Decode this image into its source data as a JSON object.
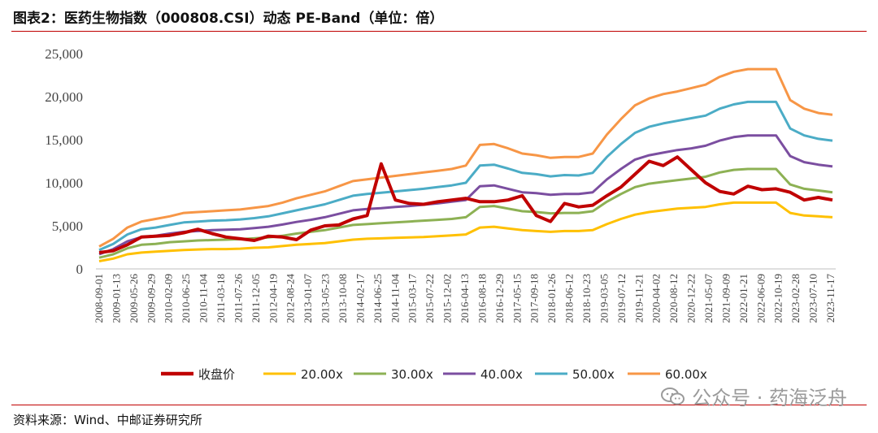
{
  "title": "图表2：医药生物指数（000808.CSI）动态 PE-Band（单位：倍）",
  "source": "资料来源：Wind、中邮证券研究所",
  "watermark": "公众号 · 药海泛舟",
  "chart_data": {
    "type": "line",
    "title": "图表2：医药生物指数（000808.CSI）动态 PE-Band（单位：倍）",
    "xlabel": "",
    "ylabel": "",
    "ylim": [
      0,
      25000
    ],
    "yticks": [
      0,
      5000,
      10000,
      15000,
      20000,
      25000
    ],
    "ytick_labels": [
      "0",
      "5,000",
      "10,000",
      "15,000",
      "20,000",
      "25,000"
    ],
    "x_tick_labels": [
      "2008-09-01",
      "2009-01-13",
      "2009-05-26",
      "2009-09-29",
      "2010-02-09",
      "2010-06-25",
      "2010-11-04",
      "2011-03-18",
      "2011-07-26",
      "2011-12-05",
      "2012-04-19",
      "2012-08-24",
      "2013-01-07",
      "2013-05-23",
      "2013-10-08",
      "2014-02-17",
      "2014-06-25",
      "2014-11-04",
      "2015-03-17",
      "2015-07-22",
      "2015-12-02",
      "2016-04-13",
      "2016-08-18",
      "2016-12-29",
      "2017-05-15",
      "2017-09-18",
      "2018-01-26",
      "2018-06-12",
      "2018-10-23",
      "2019-03-05",
      "2019-07-12",
      "2019-11-21",
      "2020-04-02",
      "2020-08-12",
      "2020-12-22",
      "2021-05-07",
      "2021-09-09",
      "2022-01-21",
      "2022-06-09",
      "2022-10-19",
      "2023-02-28",
      "2023-07-10",
      "2023-11-17"
    ],
    "legend_position": "bottom",
    "series": [
      {
        "name": "收盘价",
        "color": "#c00000",
        "values": [
          1900,
          2100,
          2800,
          3700,
          3800,
          3900,
          4200,
          4600,
          4100,
          3700,
          3500,
          3300,
          3800,
          3700,
          3400,
          4500,
          5000,
          5100,
          5800,
          6200,
          12200,
          8000,
          7600,
          7500,
          7800,
          8000,
          8200,
          7800,
          7800,
          8000,
          8500,
          6200,
          5500,
          7600,
          7200,
          7400,
          8500,
          9500,
          11000,
          12500,
          12000,
          13000,
          11500,
          10000,
          9000,
          8700,
          9600,
          9200,
          9300,
          8900,
          8000,
          8300,
          8000
        ]
      },
      {
        "name": "20.00x",
        "color": "#ffc000",
        "values": [
          900,
          1200,
          1700,
          1900,
          2000,
          2100,
          2200,
          2250,
          2300,
          2300,
          2350,
          2450,
          2500,
          2650,
          2800,
          2900,
          3000,
          3200,
          3400,
          3500,
          3550,
          3600,
          3650,
          3700,
          3800,
          3900,
          4000,
          4800,
          4900,
          4700,
          4500,
          4400,
          4300,
          4400,
          4400,
          4500,
          5200,
          5800,
          6300,
          6600,
          6800,
          7000,
          7100,
          7200,
          7500,
          7700,
          7700,
          7700,
          7700,
          6500,
          6200,
          6100,
          6000
        ]
      },
      {
        "name": "30.00x",
        "color": "#8db154",
        "values": [
          1300,
          1700,
          2400,
          2800,
          2900,
          3100,
          3200,
          3300,
          3350,
          3400,
          3450,
          3550,
          3650,
          3850,
          4100,
          4300,
          4500,
          4800,
          5100,
          5200,
          5300,
          5400,
          5500,
          5600,
          5700,
          5800,
          6000,
          7200,
          7300,
          7000,
          6700,
          6600,
          6450,
          6500,
          6500,
          6700,
          7800,
          8700,
          9500,
          9900,
          10100,
          10300,
          10500,
          10700,
          11200,
          11500,
          11600,
          11600,
          11600,
          9800,
          9300,
          9100,
          8900
        ]
      },
      {
        "name": "40.00x",
        "color": "#7b4ea0",
        "values": [
          1700,
          2300,
          3200,
          3700,
          3850,
          4100,
          4300,
          4400,
          4500,
          4550,
          4600,
          4750,
          4900,
          5150,
          5450,
          5700,
          6000,
          6400,
          6800,
          6950,
          7050,
          7200,
          7300,
          7450,
          7600,
          7800,
          8000,
          9600,
          9700,
          9300,
          8900,
          8800,
          8600,
          8700,
          8700,
          8900,
          10400,
          11600,
          12700,
          13200,
          13500,
          13800,
          14000,
          14300,
          14900,
          15300,
          15500,
          15500,
          15500,
          13100,
          12400,
          12100,
          11900
        ]
      },
      {
        "name": "50.00x",
        "color": "#4bacc6",
        "values": [
          2200,
          2900,
          4000,
          4600,
          4800,
          5100,
          5400,
          5500,
          5600,
          5650,
          5750,
          5900,
          6100,
          6450,
          6800,
          7150,
          7500,
          8000,
          8500,
          8700,
          8850,
          9000,
          9150,
          9300,
          9500,
          9700,
          10000,
          12000,
          12100,
          11650,
          11150,
          11000,
          10750,
          10900,
          10850,
          11150,
          13000,
          14500,
          15800,
          16500,
          16900,
          17200,
          17500,
          17800,
          18600,
          19100,
          19400,
          19400,
          19400,
          16300,
          15500,
          15100,
          14900
        ]
      },
      {
        "name": "60.00x",
        "color": "#f79646",
        "values": [
          2600,
          3500,
          4800,
          5500,
          5800,
          6100,
          6500,
          6600,
          6700,
          6800,
          6900,
          7100,
          7300,
          7700,
          8200,
          8600,
          9000,
          9600,
          10200,
          10400,
          10600,
          10800,
          11000,
          11200,
          11400,
          11600,
          12000,
          14400,
          14500,
          14000,
          13400,
          13200,
          12900,
          13000,
          13000,
          13400,
          15600,
          17400,
          19000,
          19800,
          20300,
          20600,
          21000,
          21400,
          22300,
          22900,
          23200,
          23200,
          23200,
          19600,
          18600,
          18100,
          17900
        ]
      }
    ]
  }
}
